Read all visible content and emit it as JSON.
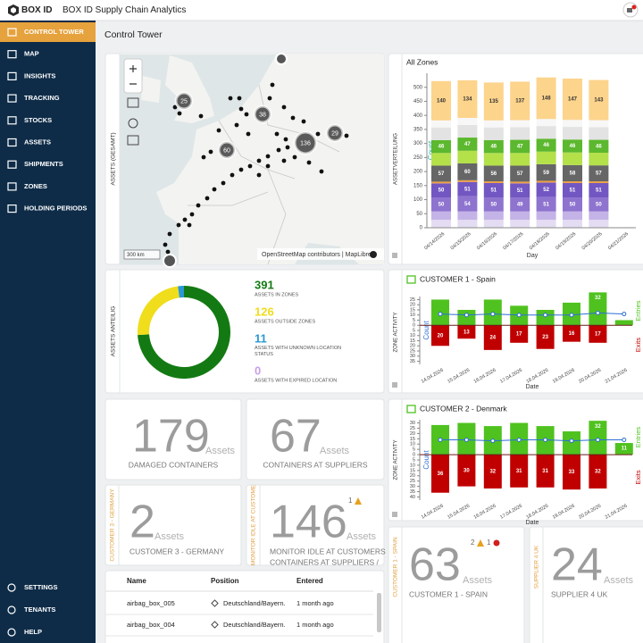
{
  "header": {
    "logo": "BOX ID",
    "title": "BOX ID Supply Chain Analytics"
  },
  "nav": {
    "items": [
      "CONTROL TOWER",
      "MAP",
      "INSIGHTS",
      "TRACKING",
      "STOCKS",
      "ASSETS",
      "SHIPMENTS",
      "ZONES",
      "HOLDING PERIODS"
    ],
    "bottom": [
      "SETTINGS",
      "TENANTS",
      "HELP"
    ]
  },
  "page_title": "Control Tower",
  "map": {
    "side_label": "ASSETS (GESAMT)",
    "clusters": [
      25,
      38,
      136,
      29,
      60
    ],
    "attribution": "OpenStreetMap contributors | MapLibre",
    "scale": "300 km"
  },
  "donut": {
    "side_label": "ASSETS ANTEILIG",
    "items": [
      {
        "value": 391,
        "label": "ASSETS IN ZONES",
        "color": "#137a13"
      },
      {
        "value": 126,
        "label": "ASSETS OUTSIDE ZONES",
        "color": "#f0dd1c"
      },
      {
        "value": 11,
        "label": "ASSETS WITH UNKNOWN LOCATION STATUS",
        "color": "#2a98d4"
      },
      {
        "value": 0,
        "label": "ASSETS WITH EXPIRED LOCATION",
        "color": "#c9a0e8"
      }
    ]
  },
  "kpis": [
    {
      "value": 179,
      "unit": "Assets",
      "caption": [
        "DAMAGED CONTAINERS"
      ]
    },
    {
      "value": 67,
      "unit": "Assets",
      "caption": [
        "CONTAINERS AT SUPPLIERS"
      ]
    },
    {
      "value": 2,
      "unit": "Assets",
      "caption": [
        "CUSTOMER 3 - GERMANY"
      ],
      "side_label": "CUSTOMER 3 - GERMANY"
    },
    {
      "value": 146,
      "unit": "Assets",
      "caption": [
        "MONITOR IDLE AT CUSTOMERS",
        "CONTAINERS AT SUPPLIERS /"
      ],
      "side_label": "MONITOR IDLE AT CUSTOME",
      "badges": [
        {
          "count": 1,
          "kind": "warning"
        }
      ]
    },
    {
      "value": 63,
      "unit": "Assets",
      "caption": [
        "CUSTOMER 1 - SPAIN"
      ],
      "side_label": "CUSTOMER 1 - SPAIN",
      "badges": [
        {
          "count": 2,
          "kind": "warning"
        },
        {
          "count": 1,
          "kind": "error"
        }
      ]
    },
    {
      "value": 24,
      "unit": "Assets",
      "caption": [
        "SUPPLIER 4 UK"
      ],
      "side_label": "SUPPLIER 4 UK"
    }
  ],
  "table": {
    "columns": [
      "Name",
      "Position",
      "Entered"
    ],
    "rows": [
      [
        "airbag_box_005",
        "Deutschland/Bayern.",
        "1 month ago"
      ],
      [
        "airbag_box_004",
        "Deutschland/Bayern.",
        "1 month ago"
      ]
    ]
  },
  "chart_data": [
    {
      "type": "bar",
      "stacked": true,
      "title": "All Zones",
      "side_label": "ASSETVERTEILUNG",
      "xlabel": "Day",
      "ylabel": "Count",
      "categories": [
        "04/14/2026",
        "04/15/2026",
        "04/16/2026",
        "04/17/2026",
        "04/18/2026",
        "04/19/2026",
        "04/20/2026",
        "04/21/2026"
      ],
      "ylim": [
        0,
        550
      ],
      "yticks": [
        0,
        50,
        100,
        150,
        200,
        250,
        300,
        350,
        400,
        450,
        500
      ],
      "series": [
        {
          "color": "#e4dcf2",
          "values": [
            28,
            28,
            28,
            28,
            28,
            28,
            28,
            null
          ]
        },
        {
          "color": "#c4b3e6",
          "values": [
            30,
            30,
            30,
            30,
            30,
            30,
            30,
            null
          ]
        },
        {
          "color": "#8e74cf",
          "values": [
            50,
            54,
            50,
            49,
            51,
            50,
            50,
            null
          ],
          "show_labels": true
        },
        {
          "color": "#7257c2",
          "values": [
            50,
            51,
            51,
            51,
            52,
            51,
            51,
            null
          ],
          "show_labels": true
        },
        {
          "color": "#f0a040",
          "values": [
            6,
            6,
            6,
            6,
            6,
            6,
            6,
            null
          ]
        },
        {
          "color": "#666666",
          "values": [
            57,
            60,
            56,
            57,
            59,
            58,
            57,
            null
          ],
          "show_labels": true
        },
        {
          "color": "#b4e04a",
          "values": [
            45,
            45,
            45,
            45,
            45,
            45,
            45,
            null
          ]
        },
        {
          "color": "#5cb82e",
          "values": [
            46,
            47,
            46,
            47,
            46,
            46,
            46,
            null
          ],
          "show_labels": true
        },
        {
          "color": "#e3e3e3",
          "values": [
            45,
            45,
            45,
            45,
            45,
            45,
            45,
            null
          ]
        },
        {
          "color": "#f7f7f7",
          "values": [
            25,
            25,
            25,
            25,
            25,
            25,
            25,
            null
          ]
        },
        {
          "color": "#fcd48c",
          "values": [
            140,
            134,
            135,
            137,
            148,
            147,
            143,
            null
          ],
          "show_labels": true,
          "label_color": "#333333"
        }
      ]
    },
    {
      "type": "bar",
      "title": "CUSTOMER 1 - Spain",
      "side_label": "ZONE ACTIVITY",
      "xlabel": "Date",
      "ylabel": "Count",
      "categories": [
        "14.04.2026",
        "15.04.2026",
        "16.04.2026",
        "17.04.2026",
        "18.04.2026",
        "19.04.2026",
        "20.04.2026",
        "21.04.2026"
      ],
      "ylim": [
        -38,
        28
      ],
      "yticks": [
        25,
        20,
        15,
        10,
        5,
        0,
        {
          "value": -5,
          "label": "5"
        },
        {
          "value": -10,
          "label": "10"
        },
        {
          "value": -15,
          "label": "15"
        },
        {
          "value": -20,
          "label": "20"
        },
        {
          "value": -25,
          "label": "25"
        },
        {
          "value": -30,
          "label": "30"
        },
        {
          "value": -35,
          "label": "35"
        }
      ],
      "series": [
        {
          "name": "Entries",
          "color": "#4fc21f",
          "values": [
            25,
            15,
            25,
            19,
            15,
            22,
            32,
            5
          ],
          "value_labels": [
            null,
            null,
            null,
            null,
            null,
            null,
            "32",
            null
          ]
        },
        {
          "name": "Exits",
          "color": "#c00000",
          "values": [
            -20,
            -13,
            -24,
            -17,
            -23,
            -16,
            -17,
            null
          ],
          "value_labels": [
            "20",
            "13",
            "24",
            "17",
            "23",
            "16",
            "17",
            null
          ]
        },
        {
          "type": "line",
          "color": "#2a6fd6",
          "values": [
            11,
            10,
            11,
            10,
            10,
            10,
            12,
            11
          ]
        }
      ]
    },
    {
      "type": "bar",
      "title": "CUSTOMER 2 - Denmark",
      "side_label": "ZONE ACTIVITY",
      "xlabel": "Date",
      "ylabel": "Count",
      "categories": [
        "14.04.2026",
        "15.04.2026",
        "16.04.2026",
        "17.04.2026",
        "18.04.2026",
        "19.04.2026",
        "20.04.2026",
        "21.04.2026"
      ],
      "ylim": [
        -43,
        33
      ],
      "yticks": [
        30,
        25,
        20,
        15,
        10,
        5,
        0,
        {
          "value": -5,
          "label": "5"
        },
        {
          "value": -10,
          "label": "10"
        },
        {
          "value": -15,
          "label": "15"
        },
        {
          "value": -20,
          "label": "20"
        },
        {
          "value": -25,
          "label": "25"
        },
        {
          "value": -30,
          "label": "30"
        },
        {
          "value": -35,
          "label": "35"
        },
        {
          "value": -40,
          "label": "40"
        }
      ],
      "series": [
        {
          "name": "Entries",
          "color": "#4fc21f",
          "values": [
            28,
            30,
            27,
            30,
            27,
            22,
            32,
            11
          ],
          "value_labels": [
            null,
            null,
            null,
            null,
            null,
            null,
            "32",
            "11"
          ]
        },
        {
          "name": "Exits",
          "color": "#c00000",
          "values": [
            -36,
            -30,
            -32,
            -31,
            -31,
            -33,
            -32,
            null
          ],
          "value_labels": [
            "36",
            "30",
            "32",
            "31",
            "31",
            "33",
            "32",
            null
          ]
        },
        {
          "type": "line",
          "color": "#2a6fd6",
          "values": [
            14,
            14,
            13,
            14,
            14,
            13,
            14,
            14
          ]
        }
      ]
    }
  ]
}
